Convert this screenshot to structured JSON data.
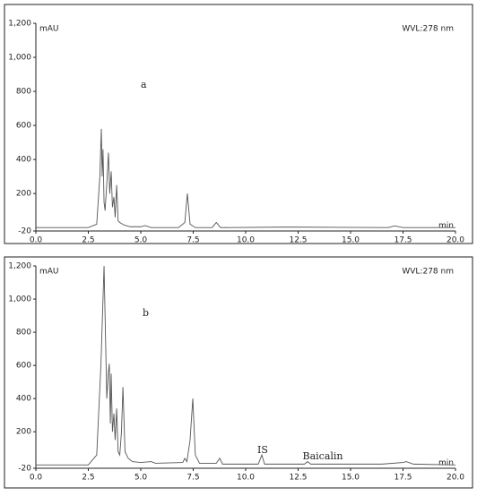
{
  "chart_data": [
    {
      "type": "line",
      "panel_label": "a",
      "ylabel": "mAU",
      "xlabel": "min",
      "note": "WVL:278 nm",
      "xlim": [
        0,
        20
      ],
      "ylim": [
        -20,
        1200
      ],
      "xticks": [
        {
          "value": 0,
          "label": "0.0"
        },
        2.5,
        {
          "value": 5,
          "label": "5.0"
        },
        7.5,
        {
          "value": 10,
          "label": "10.0"
        },
        12.5,
        {
          "value": 15,
          "label": "15.0"
        },
        17.5,
        {
          "value": 20,
          "label": "20.0"
        }
      ],
      "yticks": [
        -20,
        200,
        400,
        600,
        800,
        {
          "value": 1000,
          "label": "1,000"
        },
        {
          "value": 1200,
          "label": "1,200"
        }
      ],
      "series": [
        {
          "color": "#555555",
          "x": [
            0,
            2.5,
            2.9,
            3.05,
            3.12,
            3.16,
            3.2,
            3.25,
            3.3,
            3.4,
            3.46,
            3.52,
            3.59,
            3.65,
            3.72,
            3.78,
            3.85,
            3.92,
            4.0,
            4.2,
            4.5,
            5.0,
            5.2,
            5.5,
            6.8,
            7.1,
            7.22,
            7.35,
            7.6,
            8.4,
            8.6,
            8.8,
            12.0,
            16.8,
            17.1,
            17.5,
            20
          ],
          "values": [
            0,
            0,
            20,
            300,
            580,
            300,
            460,
            150,
            100,
            300,
            440,
            200,
            330,
            120,
            180,
            60,
            250,
            40,
            30,
            15,
            5,
            5,
            12,
            0,
            0,
            30,
            200,
            20,
            0,
            0,
            30,
            0,
            3,
            0,
            10,
            0,
            0
          ]
        }
      ]
    },
    {
      "type": "line",
      "panel_label": "b",
      "ylabel": "mAU",
      "xlabel": "min",
      "note": "WVL:278 nm",
      "annotations": [
        "IS",
        "Baicalin"
      ],
      "xlim": [
        0,
        20
      ],
      "ylim": [
        -20,
        1200
      ],
      "xticks": [
        {
          "value": 0,
          "label": "0.0"
        },
        2.5,
        {
          "value": 5,
          "label": "5.0"
        },
        7.5,
        {
          "value": 10,
          "label": "10.0"
        },
        12.5,
        {
          "value": 15,
          "label": "15.0"
        },
        17.5,
        {
          "value": 20,
          "label": "20.0"
        }
      ],
      "yticks": [
        -20,
        200,
        400,
        600,
        800,
        {
          "value": 1000,
          "label": "1,000"
        },
        {
          "value": 1200,
          "label": "1,200"
        }
      ],
      "series": [
        {
          "color": "#555555",
          "x": [
            0,
            2.5,
            2.9,
            3.1,
            3.25,
            3.38,
            3.45,
            3.5,
            3.55,
            3.59,
            3.65,
            3.72,
            3.78,
            3.85,
            3.92,
            4.0,
            4.08,
            4.15,
            4.25,
            4.4,
            4.6,
            5.0,
            5.5,
            5.7,
            7.0,
            7.1,
            7.2,
            7.35,
            7.48,
            7.6,
            7.8,
            8.6,
            8.76,
            8.9,
            10.6,
            10.77,
            10.9,
            12.8,
            12.95,
            13.1,
            16.5,
            17.5,
            17.65,
            18,
            20
          ],
          "values": [
            0,
            0,
            60,
            600,
            1200,
            400,
            550,
            610,
            250,
            550,
            200,
            310,
            150,
            340,
            80,
            60,
            200,
            470,
            80,
            40,
            20,
            15,
            20,
            10,
            15,
            40,
            20,
            150,
            400,
            60,
            10,
            10,
            40,
            5,
            5,
            60,
            5,
            5,
            20,
            5,
            5,
            15,
            20,
            5,
            0
          ]
        }
      ]
    }
  ]
}
